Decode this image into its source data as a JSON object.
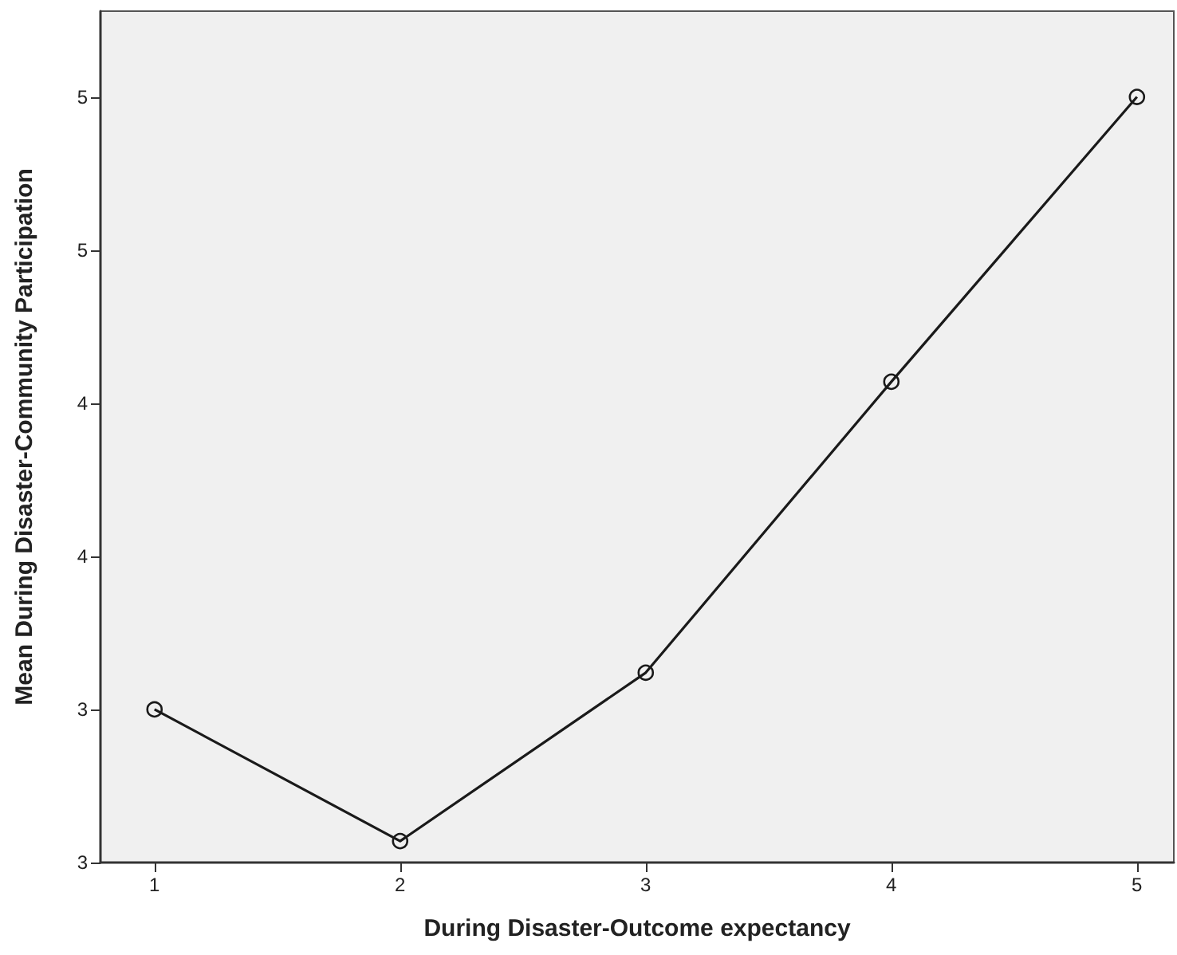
{
  "chart_data": {
    "type": "line",
    "xlabel": "During Disaster-Outcome expectancy",
    "ylabel": "Mean During Disaster-Community Participation",
    "x": [
      1,
      2,
      3,
      4,
      5
    ],
    "series": [
      {
        "color": "#1a1a1a",
        "values": [
          3.0,
          2.57,
          3.12,
          4.07,
          5.0
        ]
      }
    ],
    "xlim": [
      0.78,
      5.15
    ],
    "xticks": [
      1,
      2,
      3,
      4,
      5
    ],
    "ylim": [
      2.5,
      5.28
    ],
    "yticks": [
      {
        "value": 2.5,
        "label": "3"
      },
      {
        "value": 3.0,
        "label": "3"
      },
      {
        "value": 3.5,
        "label": "4"
      },
      {
        "value": 4.0,
        "label": "4"
      },
      {
        "value": 4.5,
        "label": "5"
      },
      {
        "value": 5.0,
        "label": "5"
      }
    ],
    "grid": false,
    "marker": "circle",
    "line_style": "solid"
  }
}
